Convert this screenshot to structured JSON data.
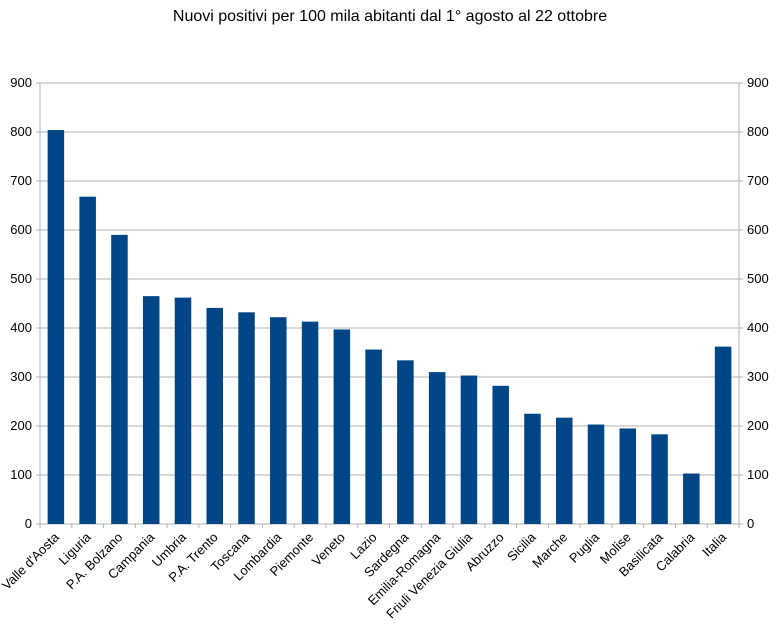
{
  "chart_data": {
    "type": "bar",
    "title": "Nuovi positivi per 100 mila abitanti dal 1° agosto al 22 ottobre",
    "xlabel": "",
    "ylabel": "",
    "ylim": [
      0,
      900
    ],
    "yticks": [
      "0",
      "100",
      "200",
      "300",
      "400",
      "500",
      "600",
      "700",
      "800",
      "900"
    ],
    "grid": true,
    "legend": "none",
    "bar_color": "#004586",
    "categories": [
      "Valle d'Aosta",
      "Liguria",
      "P.A. Bolzano",
      "Campania",
      "Umbria",
      "P.A. Trento",
      "Toscana",
      "Lombardia",
      "Piemonte",
      "Veneto",
      "Lazio",
      "Sardegna",
      "Emilia-Romagna",
      "Friuli Venezia Giulia",
      "Abruzzo",
      "Sicilia",
      "Marche",
      "Puglia",
      "Molise",
      "Basilicata",
      "Calabria",
      "Italia"
    ],
    "values": [
      804,
      668,
      590,
      465,
      462,
      441,
      432,
      422,
      413,
      397,
      356,
      334,
      310,
      303,
      282,
      225,
      217,
      203,
      195,
      183,
      103,
      362
    ]
  }
}
